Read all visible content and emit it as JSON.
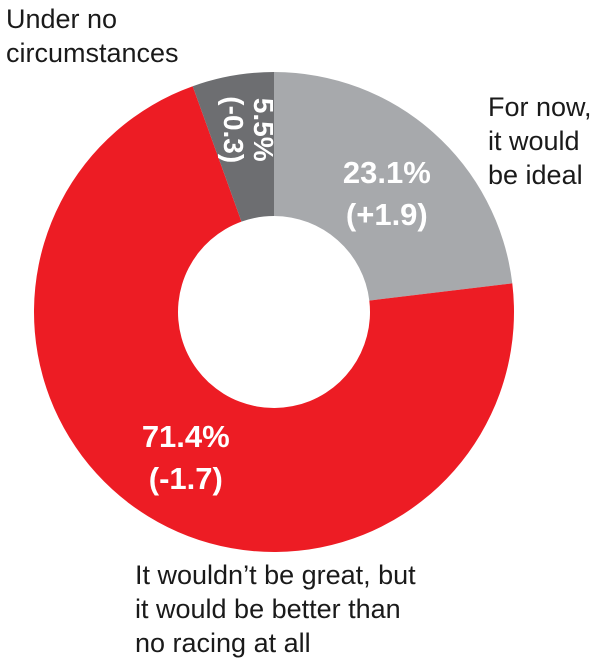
{
  "chart_data": {
    "type": "pie",
    "donut": true,
    "slices": [
      {
        "label": "For now,\nit would\nbe ideal",
        "value": 23.1,
        "change": "(+1.9)",
        "value_text": "23.1%",
        "color": "#a7a9ac"
      },
      {
        "label": "It wouldn’t be great, but\nit would be better than\nno racing at all",
        "value": 71.4,
        "change": "(-1.7)",
        "value_text": "71.4%",
        "color": "#ed1c24"
      },
      {
        "label": "Under no\ncircumstances",
        "value": 5.5,
        "change": "(-0.3)",
        "value_text": "5.5%",
        "color": "#6d6e71"
      }
    ],
    "start": "12 o'clock",
    "direction": "clockwise",
    "legend": "none"
  }
}
